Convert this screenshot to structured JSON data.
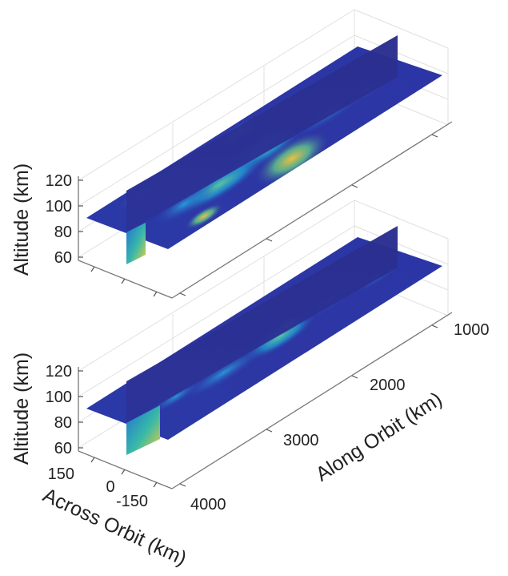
{
  "chart_data": [
    {
      "type": "heatmap",
      "panel": "top",
      "title": "",
      "zlabel": "Altitude (km)",
      "zticks": [
        "120",
        "100",
        "80",
        "60"
      ],
      "zlim": [
        55,
        125
      ],
      "colormap": "parula",
      "grid": true,
      "bright_regions": [
        {
          "along_km": 2000,
          "across_km": 0,
          "altitude_km": 100,
          "level": 1.0
        },
        {
          "along_km": 2250,
          "across_km": 30,
          "altitude_km": 100,
          "level": 0.8
        },
        {
          "along_km": 3000,
          "across_km": -40,
          "altitude_km": 100,
          "level": 0.65
        },
        {
          "along_km": 3700,
          "across_km": 0,
          "altitude_km": 70,
          "level": 0.7
        }
      ]
    },
    {
      "type": "heatmap",
      "panel": "bottom",
      "title": "",
      "xlabel": "Along Orbit (km)",
      "xticks": [
        "1000",
        "2000",
        "3000",
        "4000"
      ],
      "xlim": [
        500,
        4200
      ],
      "ylabel": "Across Orbit (km)",
      "yticks": [
        "150",
        "0",
        "-150"
      ],
      "ylim": [
        -200,
        200
      ],
      "zlabel": "Altitude (km)",
      "zticks": [
        "120",
        "100",
        "80",
        "60"
      ],
      "zlim": [
        55,
        125
      ],
      "colormap": "parula",
      "grid": true,
      "bright_regions": [
        {
          "along_km": 2100,
          "across_km": 0,
          "altitude_km": 100,
          "level": 0.75
        },
        {
          "along_km": 2600,
          "across_km": -20,
          "altitude_km": 100,
          "level": 0.55
        },
        {
          "along_km": 3800,
          "across_km": 0,
          "altitude_km": 62,
          "level": 0.95
        }
      ]
    }
  ],
  "labels": {
    "top_z_title": "Altitude (km)",
    "bottom_z_title": "Altitude (km)",
    "along_title": "Along Orbit (km)",
    "across_title": "Across Orbit (km)",
    "top_zticks": [
      "120",
      "100",
      "80",
      "60"
    ],
    "bottom_zticks": [
      "120",
      "100",
      "80",
      "60"
    ],
    "along_ticks": [
      "1000",
      "2000",
      "3000",
      "4000"
    ],
    "across_ticks": [
      "150",
      "0",
      "-150"
    ]
  },
  "colors": {
    "low": "#2c32a8",
    "mid": "#1fa5d8",
    "high": "#3ec8a0",
    "peak": "#f2c236",
    "vertical_plane": "#2a2f8f",
    "grid": "#e0e0e0"
  }
}
